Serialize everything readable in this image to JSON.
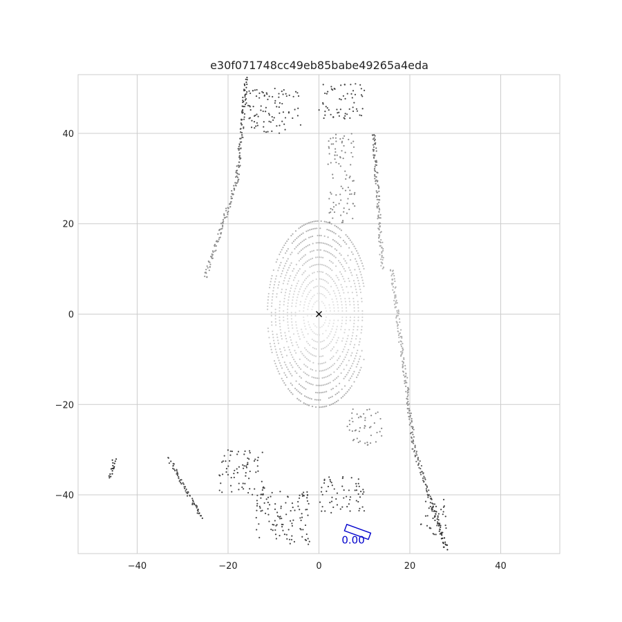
{
  "chart_data": {
    "type": "scatter",
    "title": "e30f071748cc49eb85babe49265a4eda",
    "xlabel": "",
    "ylabel": "",
    "xlim": [
      -53,
      53
    ],
    "ylim": [
      -53,
      53
    ],
    "xticks": [
      -40,
      -20,
      0,
      20,
      40
    ],
    "yticks": [
      -40,
      -20,
      0,
      20,
      40
    ],
    "xtick_labels": [
      "−40",
      "−20",
      "0",
      "20",
      "40"
    ],
    "ytick_labels": [
      "−40",
      "−20",
      "0",
      "20",
      "40"
    ],
    "grid": true,
    "aspect": "equal",
    "ego_marker": {
      "x": 0,
      "y": 0,
      "symbol": "×"
    },
    "point_colormap": "grayscale by distance from origin (light near, dark far)",
    "point_cloud_segments": [
      {
        "region": "left-wall-diagonal",
        "from": [
          -25,
          8
        ],
        "to": [
          -18,
          30
        ]
      },
      {
        "region": "left-wall-upper",
        "from": [
          -18,
          30
        ],
        "to": [
          -16,
          52
        ]
      },
      {
        "region": "right-wall",
        "from": [
          12,
          40
        ],
        "to": [
          14,
          10
        ]
      },
      {
        "region": "right-curb",
        "from": [
          16,
          10
        ],
        "to": [
          21,
          -30
        ]
      },
      {
        "region": "right-curb-lower",
        "from": [
          21,
          -30
        ],
        "to": [
          28,
          -52
        ]
      },
      {
        "region": "left-lower-line",
        "from": [
          -33,
          -32
        ],
        "to": [
          -26,
          -45
        ]
      },
      {
        "region": "far-left-line",
        "from": [
          -45,
          -32
        ],
        "to": [
          -46,
          -36
        ]
      }
    ],
    "point_clusters": [
      {
        "center": [
          -8,
          -45
        ],
        "spread": [
          6,
          6
        ],
        "shade": "dark"
      },
      {
        "center": [
          -17,
          -35
        ],
        "spread": [
          5,
          5
        ],
        "shade": "dark"
      },
      {
        "center": [
          10,
          -25
        ],
        "spread": [
          4,
          4
        ],
        "shade": "mid"
      },
      {
        "center": [
          5,
          30
        ],
        "spread": [
          3,
          10
        ],
        "shade": "mid"
      },
      {
        "center": [
          -10,
          45
        ],
        "spread": [
          6,
          5
        ],
        "shade": "dark"
      },
      {
        "center": [
          5,
          47
        ],
        "spread": [
          5,
          4
        ],
        "shade": "dark"
      },
      {
        "center": [
          5,
          -40
        ],
        "spread": [
          5,
          4
        ],
        "shade": "dark"
      },
      {
        "center": [
          25,
          -45
        ],
        "spread": [
          3,
          4
        ],
        "shade": "dark"
      }
    ],
    "boxes": [
      {
        "label": "0.00",
        "center": [
          8.5,
          -48.2
        ],
        "length": 5.6,
        "width": 1.5,
        "heading_deg": -20,
        "color": "#0000cc"
      }
    ]
  }
}
